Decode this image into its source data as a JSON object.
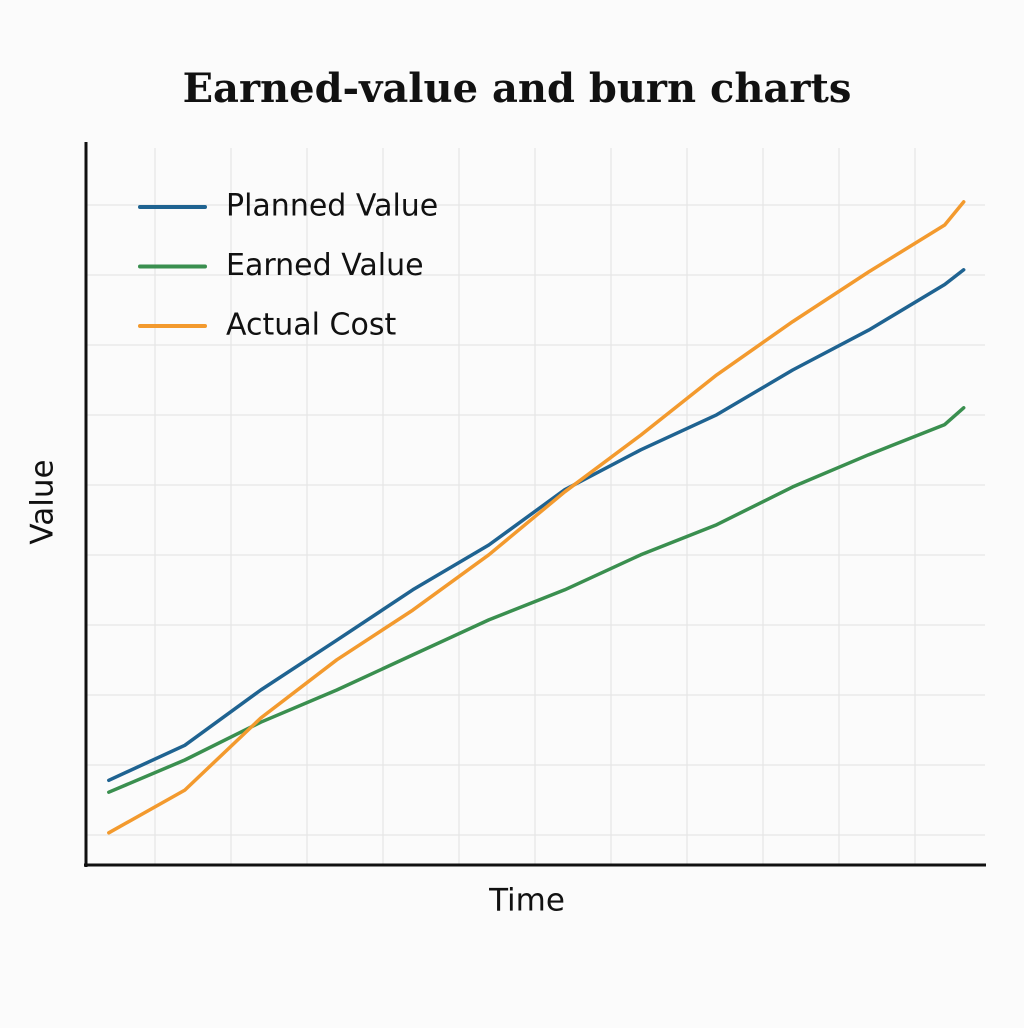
{
  "chart_data": {
    "type": "line",
    "title": "Earned-value and burn charts",
    "x_label": "Time",
    "y_label": "Value",
    "x": [
      0.3,
      1.3,
      2.3,
      3.3,
      4.3,
      5.3,
      6.3,
      7.3,
      8.3,
      9.3,
      10.3,
      11.3,
      11.55
    ],
    "xlim": [
      0,
      11.83
    ],
    "ylim": [
      0,
      10.24
    ],
    "grid": true,
    "legend": "upper-left",
    "series": [
      {
        "name": "Planned Value",
        "color": "#1f6391",
        "values": [
          1.21,
          1.71,
          2.5,
          3.21,
          3.93,
          4.57,
          5.36,
          5.93,
          6.43,
          7.07,
          7.64,
          8.29,
          8.5
        ]
      },
      {
        "name": "Earned Value",
        "color": "#3a8f4f",
        "values": [
          1.04,
          1.5,
          2.04,
          2.5,
          3.0,
          3.5,
          3.93,
          4.43,
          4.86,
          5.4,
          5.86,
          6.29,
          6.53
        ]
      },
      {
        "name": "Actual Cost",
        "color": "#f39a2e",
        "values": [
          0.46,
          1.07,
          2.1,
          2.93,
          3.64,
          4.43,
          5.33,
          6.14,
          7.0,
          7.76,
          8.47,
          9.14,
          9.47
        ]
      }
    ]
  }
}
